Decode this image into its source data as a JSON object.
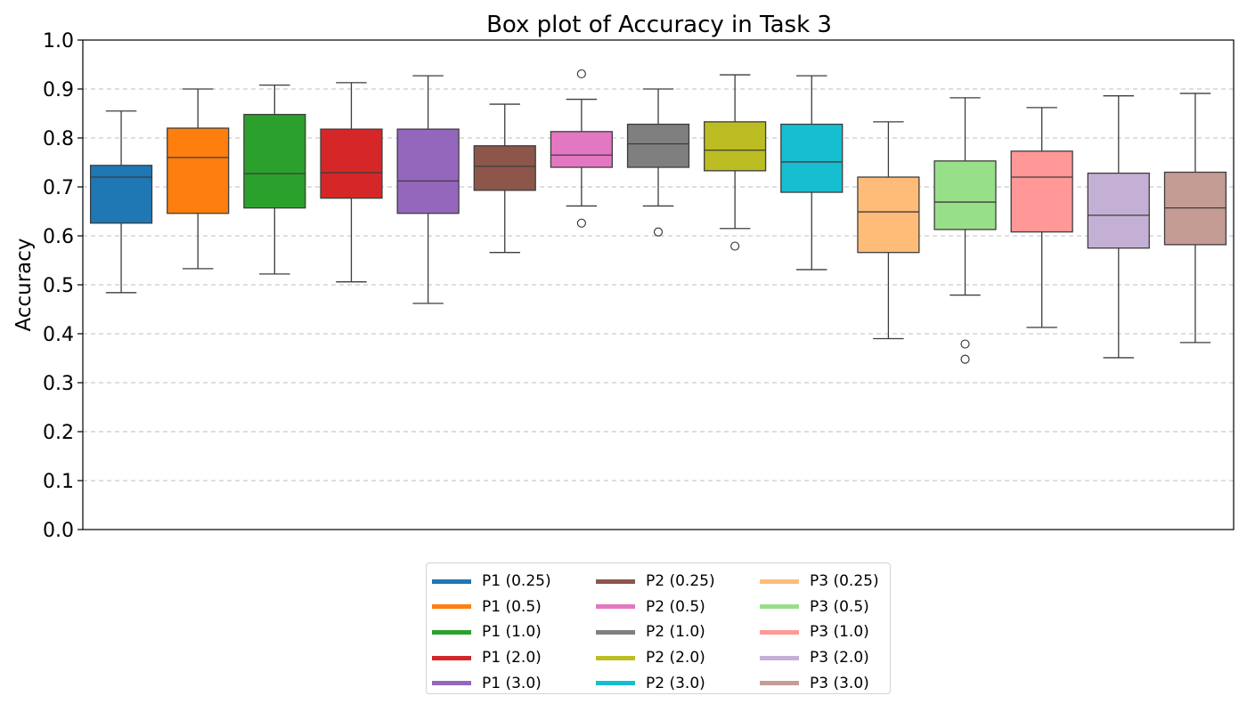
{
  "chart_data": {
    "type": "box",
    "title": "Box plot of Accuracy in Task 3",
    "xlabel": "",
    "ylabel": "Accuracy",
    "ylim": [
      0.0,
      1.0
    ],
    "yticks": [
      "0.0",
      "0.1",
      "0.2",
      "0.3",
      "0.4",
      "0.5",
      "0.6",
      "0.7",
      "0.8",
      "0.9",
      "1.0"
    ],
    "grid": "y-dashed",
    "legend_position": "bottom-center",
    "series": [
      {
        "name": "P1 (0.25)",
        "color": "#1f77b4",
        "whisker_low": 0.484,
        "q1": 0.626,
        "median": 0.72,
        "q3": 0.744,
        "whisker_high": 0.855,
        "outliers": []
      },
      {
        "name": "P1 (0.5)",
        "color": "#ff7f0e",
        "whisker_low": 0.533,
        "q1": 0.646,
        "median": 0.76,
        "q3": 0.82,
        "whisker_high": 0.9,
        "outliers": []
      },
      {
        "name": "P1 (1.0)",
        "color": "#2ca02c",
        "whisker_low": 0.522,
        "q1": 0.657,
        "median": 0.727,
        "q3": 0.848,
        "whisker_high": 0.908,
        "outliers": []
      },
      {
        "name": "P1 (2.0)",
        "color": "#d62728",
        "whisker_low": 0.506,
        "q1": 0.677,
        "median": 0.729,
        "q3": 0.818,
        "whisker_high": 0.913,
        "outliers": []
      },
      {
        "name": "P1 (3.0)",
        "color": "#9467bd",
        "whisker_low": 0.462,
        "q1": 0.646,
        "median": 0.712,
        "q3": 0.818,
        "whisker_high": 0.927,
        "outliers": []
      },
      {
        "name": "P2 (0.25)",
        "color": "#8c564b",
        "whisker_low": 0.566,
        "q1": 0.693,
        "median": 0.742,
        "q3": 0.784,
        "whisker_high": 0.869,
        "outliers": []
      },
      {
        "name": "P2 (0.5)",
        "color": "#e377c2",
        "whisker_low": 0.661,
        "q1": 0.74,
        "median": 0.765,
        "q3": 0.813,
        "whisker_high": 0.879,
        "outliers": [
          0.626,
          0.931
        ]
      },
      {
        "name": "P2 (1.0)",
        "color": "#7f7f7f",
        "whisker_low": 0.661,
        "q1": 0.74,
        "median": 0.788,
        "q3": 0.828,
        "whisker_high": 0.9,
        "outliers": [
          0.608
        ]
      },
      {
        "name": "P2 (2.0)",
        "color": "#bcbd22",
        "whisker_low": 0.615,
        "q1": 0.733,
        "median": 0.775,
        "q3": 0.833,
        "whisker_high": 0.929,
        "outliers": [
          0.579
        ]
      },
      {
        "name": "P2 (3.0)",
        "color": "#17becf",
        "whisker_low": 0.531,
        "q1": 0.689,
        "median": 0.751,
        "q3": 0.828,
        "whisker_high": 0.927,
        "outliers": []
      },
      {
        "name": "P3 (0.25)",
        "color": "#ffbb78",
        "whisker_low": 0.39,
        "q1": 0.566,
        "median": 0.649,
        "q3": 0.72,
        "whisker_high": 0.833,
        "outliers": []
      },
      {
        "name": "P3 (0.5)",
        "color": "#98df8a",
        "whisker_low": 0.479,
        "q1": 0.613,
        "median": 0.669,
        "q3": 0.753,
        "whisker_high": 0.882,
        "outliers": [
          0.379,
          0.348
        ]
      },
      {
        "name": "P3 (1.0)",
        "color": "#ff9896",
        "whisker_low": 0.413,
        "q1": 0.608,
        "median": 0.72,
        "q3": 0.773,
        "whisker_high": 0.862,
        "outliers": []
      },
      {
        "name": "P3 (2.0)",
        "color": "#c5b0d5",
        "whisker_low": 0.351,
        "q1": 0.575,
        "median": 0.642,
        "q3": 0.728,
        "whisker_high": 0.886,
        "outliers": []
      },
      {
        "name": "P3 (3.0)",
        "color": "#c49c94",
        "whisker_low": 0.382,
        "q1": 0.582,
        "median": 0.657,
        "q3": 0.73,
        "whisker_high": 0.891,
        "outliers": []
      }
    ]
  }
}
